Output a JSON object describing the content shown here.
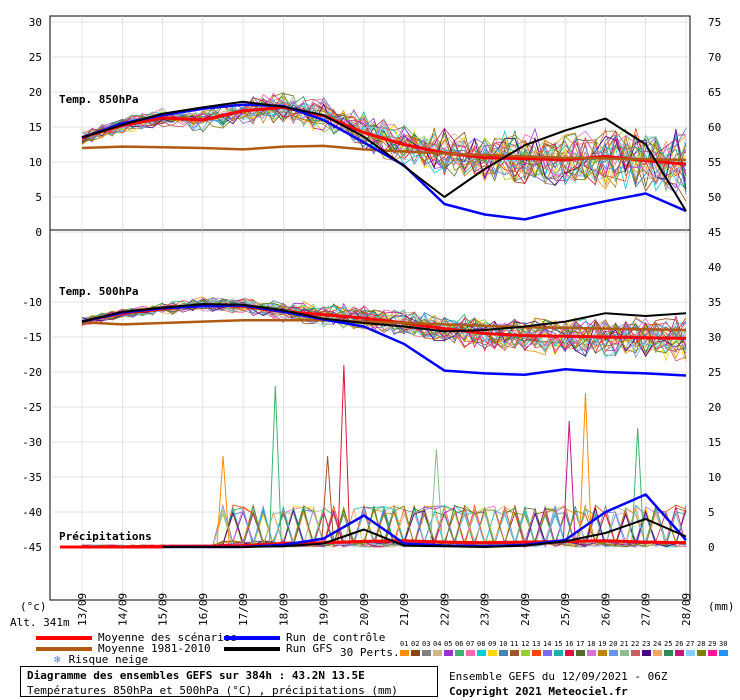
{
  "chart_data": [
    {
      "type": "line",
      "title": "Temp. 850hPa",
      "unit": "(°c)",
      "y_left_ticks": [
        0,
        5,
        10,
        15,
        20,
        25,
        30
      ],
      "y_right_ticks": [
        45,
        50,
        55,
        60,
        65,
        70,
        75
      ],
      "ylim": [
        0,
        30
      ],
      "x": [
        "13/09",
        "14/09",
        "15/09",
        "16/09",
        "17/09",
        "18/09",
        "19/09",
        "20/09",
        "21/09",
        "22/09",
        "23/09",
        "24/09",
        "25/09",
        "26/09",
        "27/09",
        "28/09"
      ],
      "series": [
        {
          "role": "mean",
          "values": [
            13.5,
            15.2,
            16.3,
            16.0,
            17.3,
            17.8,
            16.6,
            14.2,
            12.5,
            11.3,
            10.6,
            10.5,
            10.3,
            10.8,
            10.2,
            9.7
          ]
        },
        {
          "role": "climatology",
          "values": [
            12.0,
            12.2,
            12.1,
            12.0,
            11.8,
            12.2,
            12.3,
            11.8,
            11.5,
            11.2,
            11.0,
            10.8,
            10.6,
            10.5,
            10.4,
            10.3
          ]
        },
        {
          "role": "control",
          "values": [
            13.5,
            15.5,
            16.7,
            17.6,
            18.2,
            18.0,
            16.0,
            12.8,
            9.5,
            4.0,
            2.5,
            1.8,
            3.2,
            4.4,
            5.5,
            3.0
          ]
        },
        {
          "role": "gfs",
          "values": [
            13.5,
            15.3,
            16.9,
            17.8,
            18.6,
            17.9,
            16.7,
            13.6,
            9.4,
            5.0,
            9.0,
            12.4,
            14.5,
            16.2,
            12.5,
            3.0
          ]
        }
      ]
    },
    {
      "type": "line",
      "title": "Temp. 500hPa",
      "y_left_ticks": [
        -10,
        -15,
        -20,
        -25,
        -30,
        -35,
        -40,
        -45
      ],
      "y_right_ticks": [
        40,
        35,
        30,
        25,
        20,
        15,
        10,
        5,
        0
      ],
      "x": [
        "13/09",
        "14/09",
        "15/09",
        "16/09",
        "17/09",
        "18/09",
        "19/09",
        "20/09",
        "21/09",
        "22/09",
        "23/09",
        "24/09",
        "25/09",
        "26/09",
        "27/09",
        "28/09"
      ],
      "series": [
        {
          "role": "mean",
          "values": [
            -12.8,
            -11.6,
            -11.0,
            -10.4,
            -10.6,
            -11.4,
            -11.8,
            -12.3,
            -13.0,
            -13.8,
            -14.5,
            -14.8,
            -14.9,
            -15.0,
            -15.1,
            -15.2
          ]
        },
        {
          "role": "climatology",
          "values": [
            -12.9,
            -13.2,
            -13.0,
            -12.8,
            -12.6,
            -12.6,
            -12.6,
            -12.8,
            -13.0,
            -13.2,
            -13.4,
            -13.6,
            -13.7,
            -13.8,
            -13.9,
            -14.0
          ]
        },
        {
          "role": "control",
          "values": [
            -12.8,
            -11.5,
            -10.9,
            -10.6,
            -10.5,
            -11.4,
            -12.5,
            -13.5,
            -16.0,
            -19.8,
            -20.2,
            -20.4,
            -19.6,
            -20.0,
            -20.2,
            -20.5
          ]
        },
        {
          "role": "gfs",
          "values": [
            -12.8,
            -11.4,
            -10.8,
            -10.3,
            -10.4,
            -11.2,
            -12.4,
            -13.0,
            -13.5,
            -14.2,
            -14.0,
            -13.5,
            -12.8,
            -11.6,
            -12.0,
            -11.6
          ]
        }
      ]
    },
    {
      "type": "line",
      "title": "Précipitations",
      "unit": "(mm)",
      "x": [
        "13/09",
        "14/09",
        "15/09",
        "16/09",
        "17/09",
        "18/09",
        "19/09",
        "20/09",
        "21/09",
        "22/09",
        "23/09",
        "24/09",
        "25/09",
        "26/09",
        "27/09",
        "28/09"
      ],
      "series": [
        {
          "role": "mean",
          "values": [
            0,
            0,
            0.1,
            0.1,
            0.2,
            0.5,
            0.6,
            0.8,
            0.9,
            0.7,
            0.6,
            0.7,
            0.8,
            0.9,
            0.7,
            0.6
          ]
        },
        {
          "role": "control",
          "values": [
            0,
            0,
            0,
            0,
            0,
            0.3,
            1.2,
            4.5,
            0.5,
            0.2,
            0.1,
            0.3,
            1.0,
            5.0,
            7.5,
            1.0
          ]
        },
        {
          "role": "gfs",
          "values": [
            0,
            0,
            0,
            0,
            0,
            0.1,
            0.5,
            2.5,
            0.2,
            0.1,
            0.0,
            0.2,
            0.8,
            2.0,
            4.0,
            1.5
          ]
        }
      ],
      "perturbation_peaks": [
        {
          "date": "17/09",
          "value": 13
        },
        {
          "date": "18/09",
          "value": 23
        },
        {
          "date": "19/09",
          "value": 13
        },
        {
          "date": "20/09",
          "value": 26
        },
        {
          "date": "22/09",
          "value": 14
        },
        {
          "date": "25/09",
          "value": 18
        },
        {
          "date": "26/09",
          "value": 22
        },
        {
          "date": "27/09",
          "value": 17
        }
      ]
    }
  ],
  "labels": {
    "unit_left": "(°c)",
    "unit_right": "(mm)",
    "altitude": "Alt. 341m",
    "t850": "Temp. 850hPa",
    "t500": "Temp. 500hPa",
    "precip": "Précipitations"
  },
  "legend": {
    "mean": "Moyenne des scénarios",
    "climatology": "Moyenne 1981-2010",
    "snow": "Risque neige",
    "control": "Run de contrôle",
    "gfs": "Run GFS",
    "perts_label": "30 Perts."
  },
  "colors": {
    "mean": "#ff0000",
    "climatology": "#b05a14",
    "control": "#0000ff",
    "gfs": "#000000",
    "snow": "#3c8cf0"
  },
  "perturbations": {
    "numbers": [
      "01",
      "02",
      "03",
      "04",
      "05",
      "06",
      "07",
      "08",
      "09",
      "10",
      "11",
      "12",
      "13",
      "14",
      "15",
      "16",
      "17",
      "18",
      "19",
      "20",
      "21",
      "22",
      "23",
      "24",
      "25",
      "26",
      "27",
      "28",
      "29",
      "30"
    ],
    "colors": [
      "#ff8c00",
      "#8b4513",
      "#808080",
      "#d2b48c",
      "#9932cc",
      "#3cb371",
      "#ff69b4",
      "#00ced1",
      "#ffd700",
      "#4682b4",
      "#a0522d",
      "#9acd32",
      "#ff4500",
      "#7b68ee",
      "#20b2aa",
      "#dc143c",
      "#556b2f",
      "#da70d6",
      "#b8860b",
      "#6495ed",
      "#8fbc8f",
      "#cd5c5c",
      "#4b0082",
      "#f4a460",
      "#2e8b57",
      "#c71585",
      "#87cefa",
      "#808000",
      "#ff1493",
      "#1e90ff"
    ]
  },
  "footer": {
    "title": "Diagramme des ensembles GEFS sur 384h : 43.2N 13.5E",
    "subtitle": "Températures 850hPa et 500hPa (°C) , précipitations (mm)",
    "run": "Ensemble GEFS du 12/09/2021 - 06Z",
    "copyright": "Copyright 2021 Meteociel.fr"
  }
}
